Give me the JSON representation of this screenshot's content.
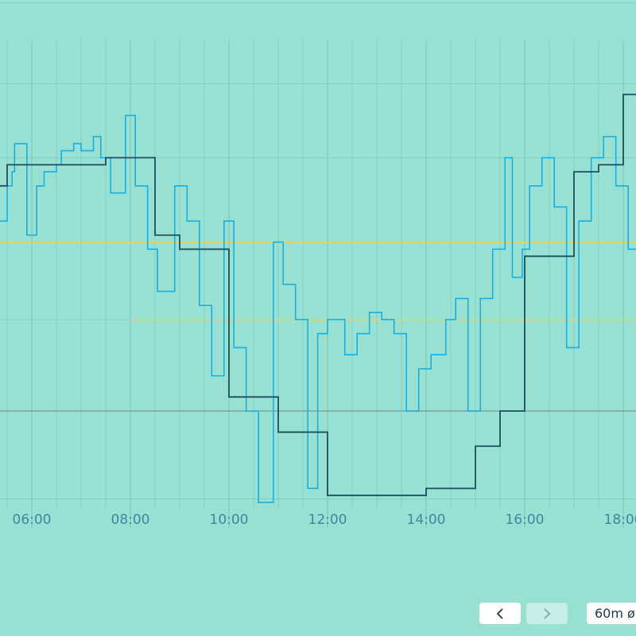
{
  "chart_data": {
    "type": "line",
    "step": true,
    "x_unit": "hours",
    "xlim": [
      5.35,
      18.35
    ],
    "ylim": [
      0,
      10.5
    ],
    "x_ticks": [
      {
        "x": 6,
        "label": "06:00"
      },
      {
        "x": 8,
        "label": "08:00"
      },
      {
        "x": 10,
        "label": "10:00"
      },
      {
        "x": 12,
        "label": "12:00"
      },
      {
        "x": 14,
        "label": "14:00"
      },
      {
        "x": 16,
        "label": "16:00"
      },
      {
        "x": 18,
        "label": "18:00"
      }
    ],
    "reference_lines": [
      {
        "y": 1.0,
        "x_start": 5.35,
        "color": "#7ca7a0"
      },
      {
        "y": 3.4,
        "x_start": 5.35,
        "color": "#f0d24a"
      },
      {
        "y": 2.3,
        "x_start": 8.0,
        "color": "#f0d24a"
      }
    ],
    "series": [
      {
        "color": "#1ab0e0",
        "x": [
          5.35,
          5.5,
          5.6,
          5.65,
          5.9,
          6.1,
          6.25,
          6.5,
          6.6,
          6.85,
          7.0,
          7.25,
          7.4,
          7.6,
          7.9,
          8.1,
          8.35,
          8.55,
          8.65,
          8.9,
          9.15,
          9.4,
          9.65,
          9.9,
          10.1,
          10.35,
          10.6,
          10.9,
          11.1,
          11.35,
          11.6,
          11.8,
          12.0,
          12.1,
          12.35,
          12.6,
          12.85,
          13.1,
          13.35,
          13.6,
          13.85,
          14.1,
          14.4,
          14.6,
          14.85,
          15.1,
          15.35,
          15.6,
          15.75,
          15.95,
          16.1,
          16.35,
          16.6,
          16.85,
          17.1,
          17.35,
          17.6,
          17.85,
          18.1,
          18.35
        ],
        "y": [
          3.7,
          4.2,
          4.4,
          4.8,
          3.5,
          4.2,
          4.4,
          4.5,
          4.7,
          4.8,
          4.7,
          4.9,
          4.6,
          4.1,
          5.2,
          4.2,
          3.3,
          2.7,
          2.7,
          4.2,
          3.7,
          2.5,
          1.5,
          3.7,
          1.9,
          1.0,
          -0.3,
          3.4,
          2.8,
          2.3,
          -0.1,
          2.1,
          2.3,
          2.3,
          1.8,
          2.1,
          2.4,
          2.3,
          2.1,
          1.0,
          1.6,
          1.8,
          2.3,
          2.6,
          1.0,
          2.6,
          3.3,
          4.6,
          2.9,
          3.3,
          4.2,
          4.6,
          3.9,
          1.9,
          3.7,
          4.6,
          4.9,
          4.2,
          3.3,
          4.4
        ],
        "label_note": "x values are step start times in hours"
      },
      {
        "color": "#1b4f5e",
        "x": [
          5.35,
          5.5,
          6.5,
          7.5,
          8.5,
          9.0,
          10.0,
          11.0,
          12.0,
          13.0,
          14.0,
          15.0,
          15.5,
          16.0,
          16.5,
          17.0,
          17.5,
          18.0
        ],
        "y": [
          4.2,
          4.5,
          4.5,
          4.6,
          3.5,
          3.3,
          1.2,
          0.7,
          -0.2,
          -0.2,
          -0.1,
          0.5,
          1.0,
          3.2,
          3.2,
          4.4,
          4.5,
          5.5
        ],
        "label_note": "x values are step start times in hours"
      }
    ],
    "grid": true
  },
  "controls": {
    "prev_icon": "chevron-left-icon",
    "next_icon": "chevron-right-icon",
    "interval_label": "60m ø"
  },
  "colors": {
    "background": "#98e0d2",
    "grid": "#7fcfc0",
    "series_light": "#1ab0e0",
    "series_dark": "#1b4f5e",
    "threshold": "#f0d24a",
    "baseline": "#7ca7a0"
  }
}
